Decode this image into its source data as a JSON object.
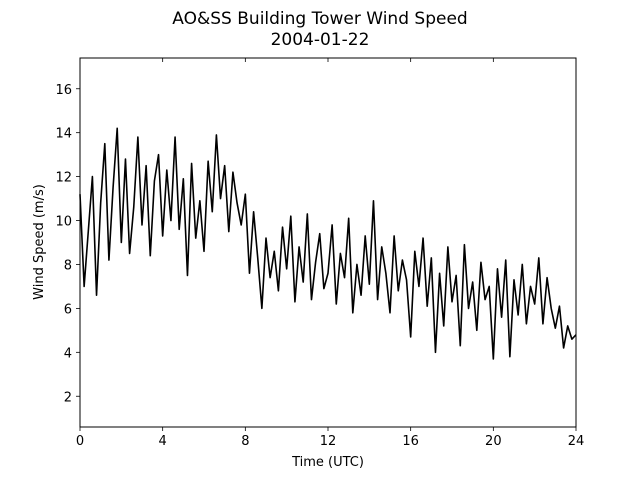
{
  "chart_data": {
    "type": "line",
    "title": "AO&SS Building Tower Wind Speed",
    "subtitle": "2004-01-22",
    "x_label": "Time (UTC)",
    "y_label": "Wind Speed (m/s)",
    "xlim": [
      0,
      24
    ],
    "xticks": [
      0,
      4,
      8,
      12,
      16,
      20,
      24
    ],
    "ylim": [
      0.6,
      17.4
    ],
    "yticks": [
      2,
      4,
      6,
      8,
      10,
      12,
      14,
      16
    ],
    "series": [
      {
        "color": "#000000",
        "x": [
          0,
          0.2,
          0.4,
          0.6,
          0.8,
          1,
          1.2,
          1.4,
          1.6,
          1.8,
          2,
          2.2,
          2.4,
          2.6,
          2.8,
          3,
          3.2,
          3.4,
          3.6,
          3.8,
          4,
          4.2,
          4.4,
          4.6,
          4.8,
          5,
          5.2,
          5.4,
          5.6,
          5.8,
          6,
          6.2,
          6.4,
          6.6,
          6.8,
          7,
          7.2,
          7.4,
          7.6,
          7.8,
          8,
          8.2,
          8.4,
          8.6,
          8.8,
          9,
          9.2,
          9.4,
          9.6,
          9.8,
          10,
          10.2,
          10.4,
          10.6,
          10.8,
          11,
          11.2,
          11.4,
          11.6,
          11.8,
          12,
          12.2,
          12.4,
          12.6,
          12.8,
          13,
          13.2,
          13.4,
          13.6,
          13.8,
          14,
          14.2,
          14.4,
          14.6,
          14.8,
          15,
          15.2,
          15.4,
          15.6,
          15.8,
          16,
          16.2,
          16.4,
          16.6,
          16.8,
          17,
          17.2,
          17.4,
          17.6,
          17.8,
          18,
          18.2,
          18.4,
          18.6,
          18.8,
          19,
          19.2,
          19.4,
          19.6,
          19.8,
          20,
          20.2,
          20.4,
          20.6,
          20.8,
          21,
          21.2,
          21.4,
          21.6,
          21.8,
          22,
          22.2,
          22.4,
          22.6,
          22.8,
          23,
          23.2,
          23.4,
          23.6,
          23.8,
          24
        ],
        "values": [
          11.2,
          7.0,
          9.5,
          12.0,
          6.6,
          10.8,
          13.5,
          8.2,
          11.5,
          14.2,
          9.0,
          12.8,
          8.5,
          10.6,
          13.8,
          9.8,
          12.5,
          8.4,
          11.8,
          13.0,
          9.3,
          12.3,
          10.0,
          13.8,
          9.6,
          11.9,
          7.5,
          12.6,
          9.2,
          10.9,
          8.6,
          12.7,
          10.4,
          13.9,
          11.0,
          12.5,
          9.5,
          12.2,
          10.8,
          9.8,
          11.2,
          7.6,
          10.4,
          8.3,
          6.0,
          9.2,
          7.4,
          8.6,
          6.8,
          9.7,
          7.8,
          10.2,
          6.3,
          8.8,
          7.2,
          10.3,
          6.4,
          8.1,
          9.4,
          6.9,
          7.6,
          9.8,
          6.2,
          8.5,
          7.4,
          10.1,
          5.8,
          8.0,
          6.6,
          9.3,
          7.1,
          10.9,
          6.4,
          8.8,
          7.6,
          5.8,
          9.3,
          6.8,
          8.2,
          7.3,
          4.7,
          8.6,
          7.0,
          9.2,
          6.1,
          8.3,
          4.0,
          7.6,
          5.2,
          8.8,
          6.3,
          7.5,
          4.3,
          8.9,
          6.0,
          7.2,
          5.0,
          8.1,
          6.4,
          7.0,
          3.7,
          7.8,
          5.6,
          8.2,
          3.8,
          7.3,
          5.7,
          8.0,
          5.3,
          7.0,
          6.2,
          8.3,
          5.3,
          7.4,
          6.0,
          5.1,
          6.1,
          4.2,
          5.2,
          4.6,
          4.8
        ]
      }
    ]
  }
}
